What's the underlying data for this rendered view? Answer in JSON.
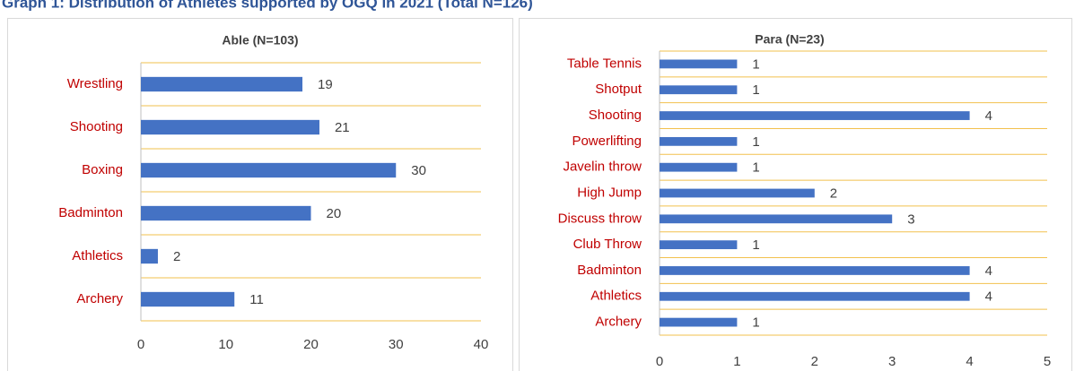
{
  "title": "Graph 1: Distribution of Athletes supported by OGQ in 2021 (Total N=126)",
  "chart_data": [
    {
      "type": "bar",
      "title": "Able (N=103)",
      "categories": [
        "Wrestling",
        "Shooting",
        "Boxing",
        "Badminton",
        "Athletics",
        "Archery"
      ],
      "values": [
        19,
        21,
        30,
        20,
        2,
        11
      ],
      "color": "#4472c4",
      "xlim": [
        0,
        40
      ],
      "xticks": [
        0,
        10,
        20,
        30,
        40
      ],
      "grid": true
    },
    {
      "type": "bar",
      "title": "Para (N=23)",
      "categories": [
        "Table Tennis",
        "Shotput",
        "Shooting",
        "Powerlifting",
        "Javelin throw",
        "High Jump",
        "Discuss throw",
        "Club Throw",
        "Badminton",
        "Athletics",
        "Archery"
      ],
      "values": [
        1,
        1,
        4,
        1,
        1,
        2,
        3,
        1,
        4,
        4,
        1
      ],
      "color": "#4472c4",
      "xlim": [
        0,
        5
      ],
      "xticks": [
        0,
        1,
        2,
        3,
        4,
        5
      ],
      "grid": true
    }
  ]
}
